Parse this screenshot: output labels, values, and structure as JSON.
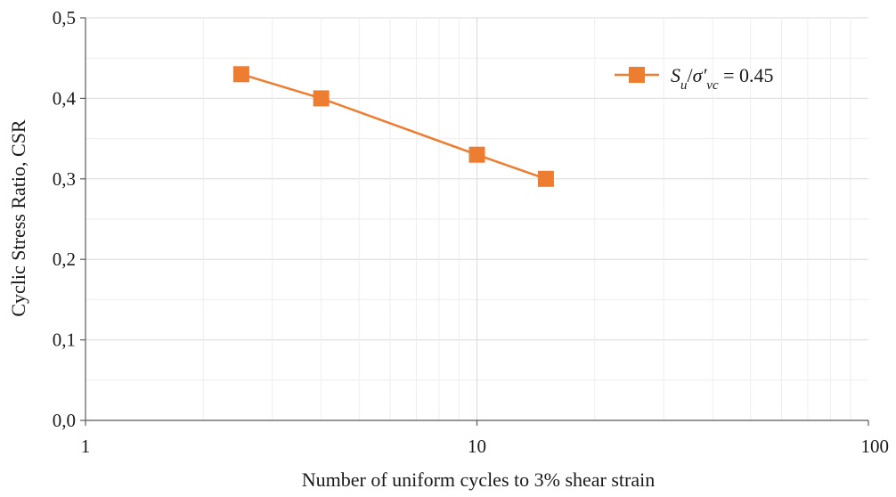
{
  "chart_data": {
    "type": "scatter",
    "xlabel": "Number of uniform cycles to 3% shear strain",
    "ylabel": "Cyclic Stress Ratio, CSR",
    "x_scale": "log",
    "xlim": [
      1,
      100
    ],
    "ylim": [
      0,
      0.5
    ],
    "x_ticks": [
      1,
      10,
      100
    ],
    "x_tick_labels": [
      "1",
      "10",
      "100"
    ],
    "y_ticks": [
      0,
      0.1,
      0.2,
      0.3,
      0.4,
      0.5
    ],
    "y_tick_labels": [
      "0,0",
      "0,1",
      "0,2",
      "0,3",
      "0,4",
      "0,5"
    ],
    "grid": true,
    "legend_position": "top-right",
    "series": [
      {
        "name": "S_u/σ'_vc = 0.45",
        "legend": {
          "symbol_main": "S",
          "symbol_sub": "u",
          "slash": "/",
          "sigma": "σ′",
          "sigma_sub": "vc",
          "value_text": " = 0.45"
        },
        "color": "#ED7D31",
        "marker": "square",
        "line": true,
        "points": [
          {
            "x": 2.5,
            "y": 0.43
          },
          {
            "x": 4,
            "y": 0.4
          },
          {
            "x": 10,
            "y": 0.33
          },
          {
            "x": 15,
            "y": 0.3
          }
        ]
      }
    ]
  }
}
